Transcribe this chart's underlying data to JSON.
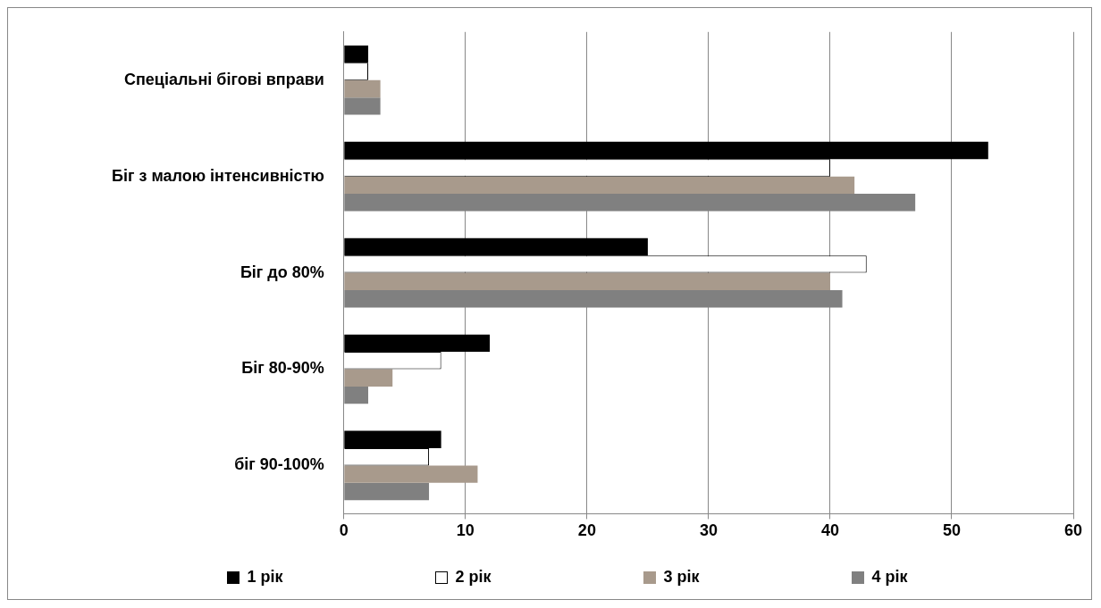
{
  "chart_data": {
    "type": "bar",
    "orientation": "horizontal",
    "categories": [
      "Спеціальні бігові вправи",
      "Біг з малою інтенсивністю",
      "Біг до 80%",
      "Біг 80-90%",
      "біг 90-100%"
    ],
    "series": [
      {
        "name": "1 рік",
        "color": "#000000",
        "values": [
          2,
          53,
          25,
          12,
          8
        ]
      },
      {
        "name": "2 рік",
        "color": "#ffffff",
        "values": [
          2,
          40,
          43,
          8,
          7
        ]
      },
      {
        "name": "3 рік",
        "color": "#a89a8c",
        "values": [
          3,
          42,
          40,
          4,
          11
        ]
      },
      {
        "name": "4 рік",
        "color": "#808080",
        "values": [
          3,
          47,
          41,
          2,
          7
        ]
      }
    ],
    "xlim": [
      0,
      60
    ],
    "xticks": [
      0,
      10,
      20,
      30,
      40,
      50,
      60
    ],
    "grid": "x",
    "legend": "bottom"
  }
}
